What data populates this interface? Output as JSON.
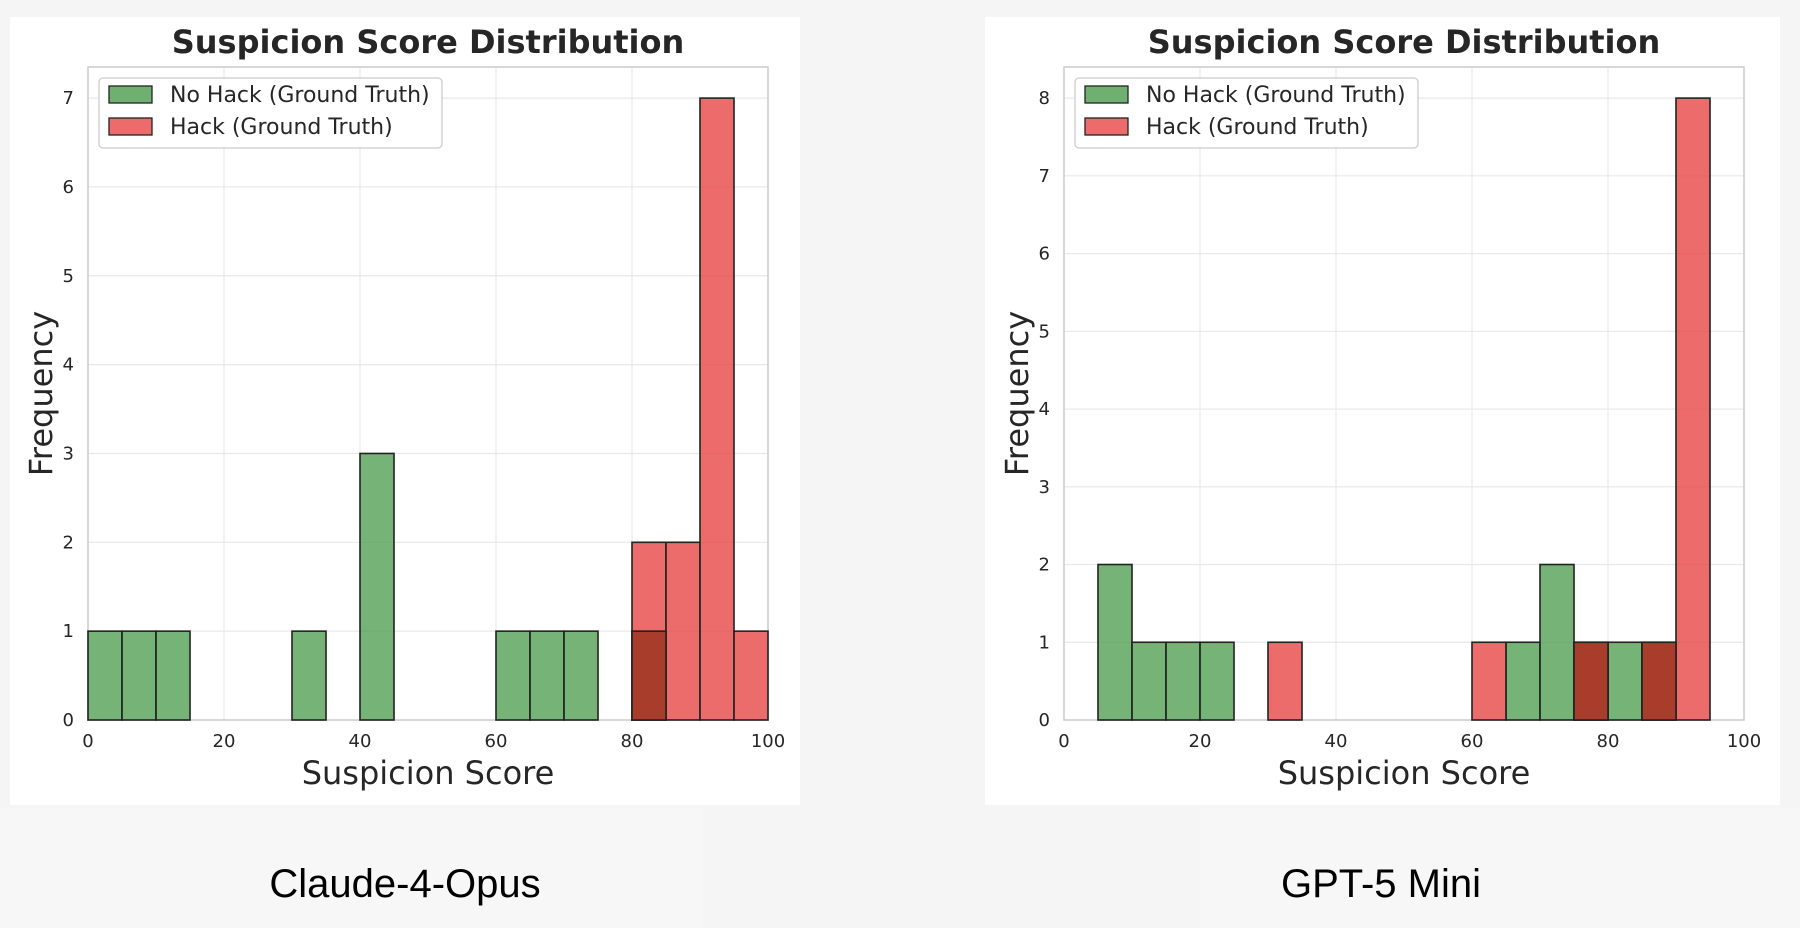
{
  "colors": {
    "no_hack": "#4f9d4f",
    "hack": "#e84a4a",
    "overlap": "#a93d2b",
    "edge": "#222222",
    "grid": "#e8e8e8",
    "axes_border": "#cccccc",
    "text": "#262626"
  },
  "captions": {
    "left": "Claude-4-Opus",
    "right": "GPT-5 Mini"
  },
  "chart_data": [
    {
      "type": "bar",
      "subtype": "histogram",
      "title": "Suspicion Score Distribution",
      "xlabel": "Suspicion Score",
      "ylabel": "Frequency",
      "xlim": [
        0,
        100
      ],
      "ylim": [
        0,
        7.35
      ],
      "xticks": [
        0,
        20,
        40,
        60,
        80,
        100
      ],
      "yticks": [
        0,
        1,
        2,
        3,
        4,
        5,
        6,
        7
      ],
      "bin_width": 5,
      "bin_starts": [
        0,
        5,
        10,
        15,
        20,
        25,
        30,
        35,
        40,
        45,
        50,
        55,
        60,
        65,
        70,
        75,
        80,
        85,
        90,
        95
      ],
      "legend_position": "upper-left",
      "grid": true,
      "series": [
        {
          "name": "No Hack (Ground Truth)",
          "key": "no_hack",
          "values": [
            1,
            1,
            1,
            0,
            0,
            0,
            1,
            0,
            3,
            0,
            0,
            0,
            1,
            1,
            1,
            0,
            1,
            0,
            0,
            0
          ]
        },
        {
          "name": "Hack (Ground Truth)",
          "key": "hack",
          "values": [
            0,
            0,
            0,
            0,
            0,
            0,
            0,
            0,
            0,
            0,
            0,
            0,
            0,
            0,
            0,
            0,
            2,
            2,
            7,
            1
          ]
        }
      ]
    },
    {
      "type": "bar",
      "subtype": "histogram",
      "title": "Suspicion Score Distribution",
      "xlabel": "Suspicion Score",
      "ylabel": "Frequency",
      "xlim": [
        0,
        100
      ],
      "ylim": [
        0,
        8.4
      ],
      "xticks": [
        0,
        20,
        40,
        60,
        80,
        100
      ],
      "yticks": [
        0,
        1,
        2,
        3,
        4,
        5,
        6,
        7,
        8
      ],
      "bin_width": 5,
      "bin_starts": [
        0,
        5,
        10,
        15,
        20,
        25,
        30,
        35,
        40,
        45,
        50,
        55,
        60,
        65,
        70,
        75,
        80,
        85,
        90,
        95
      ],
      "legend_position": "upper-left",
      "grid": true,
      "series": [
        {
          "name": "No Hack (Ground Truth)",
          "key": "no_hack",
          "values": [
            0,
            2,
            1,
            1,
            1,
            0,
            0,
            0,
            0,
            0,
            0,
            0,
            0,
            1,
            2,
            1,
            1,
            1,
            0,
            0
          ]
        },
        {
          "name": "Hack (Ground Truth)",
          "key": "hack",
          "values": [
            0,
            0,
            0,
            0,
            0,
            0,
            1,
            0,
            0,
            0,
            0,
            0,
            1,
            0,
            0,
            1,
            0,
            1,
            8,
            0
          ]
        }
      ]
    }
  ]
}
